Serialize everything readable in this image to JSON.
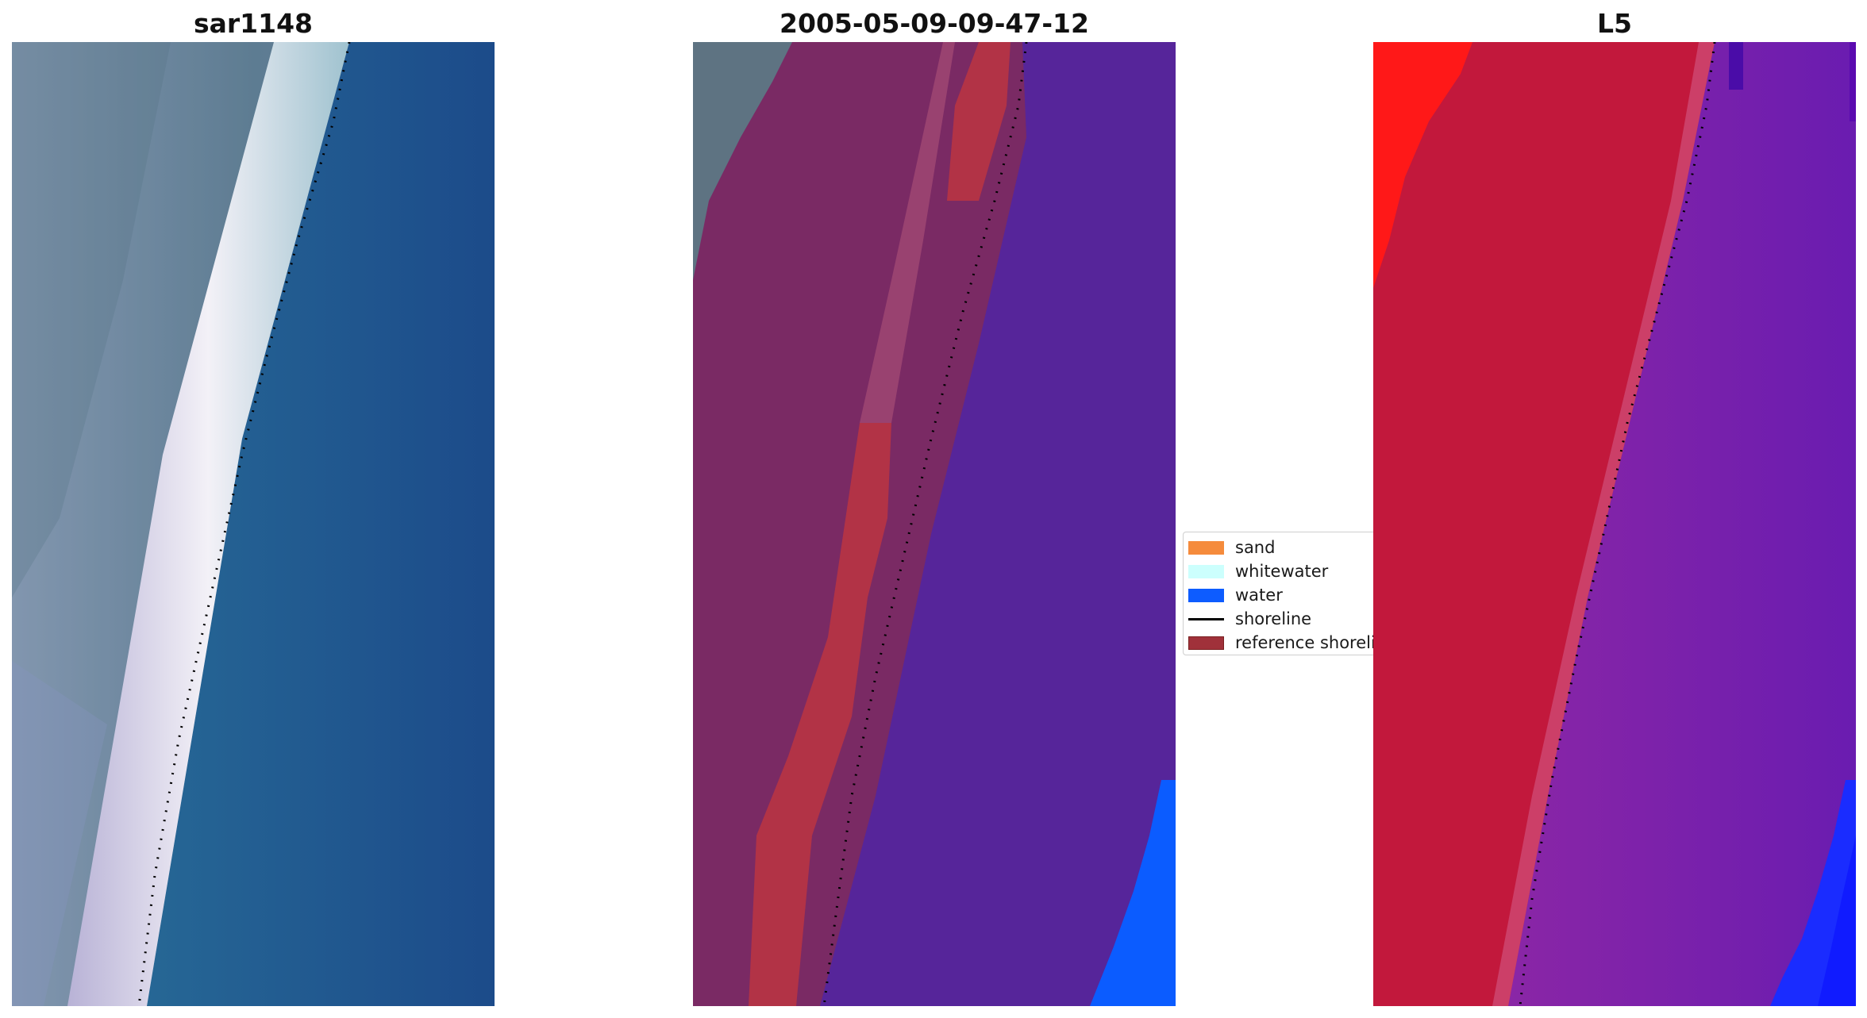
{
  "panels": [
    {
      "title": "sar1148",
      "image_description_icon": "satellite-rgb-image"
    },
    {
      "title": "2005-05-09-09-47-12",
      "image_description_icon": "classified-overlay-image"
    },
    {
      "title": "L5",
      "image_description_icon": "index-colormap-image"
    }
  ],
  "legend": {
    "items": [
      {
        "label": "sand",
        "color": "#f58b3c",
        "kind": "patch"
      },
      {
        "label": "whitewater",
        "color": "#ccfffd",
        "kind": "patch"
      },
      {
        "label": "water",
        "color": "#0d5cff",
        "kind": "patch"
      },
      {
        "label": "shoreline",
        "color": "#000000",
        "kind": "line"
      },
      {
        "label": "reference shoreline",
        "color": "#a0313a",
        "kind": "patch"
      }
    ]
  },
  "colors": {
    "panel1_land": "#6a8aa0",
    "panel1_water": "#1d5590",
    "panel1_whitewater": "#f0ecf5",
    "panel2_land": "#7a2a64",
    "panel2_water": "#56259a",
    "panel2_reference": "#b23346",
    "panel2_bright_water": "#0b5cff",
    "panel3_land": "#c2183c",
    "panel3_water": "#7a22b0",
    "panel3_bright": "#ff1818",
    "panel3_blue": "#1a2cff"
  }
}
